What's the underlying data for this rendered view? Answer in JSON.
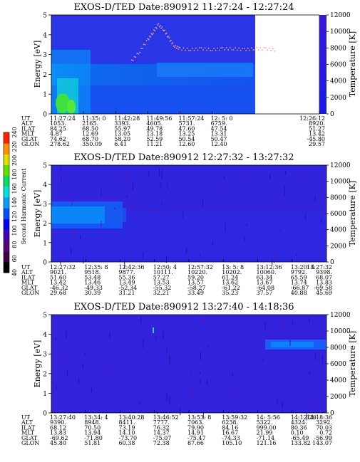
{
  "chart_data": [
    {
      "type": "heatmap",
      "title": "EXOS-D/TED   Date:890912   11:27:24 - 12:27:24",
      "ylabel": "Energy [eV]",
      "y2label": "Temperature [K]",
      "ylim": [
        0,
        5
      ],
      "yticks": [
        "0",
        "1",
        "2",
        "3",
        "4",
        "5"
      ],
      "y2lim": [
        0,
        12000
      ],
      "y2ticks": [
        "0",
        "2000",
        "4000",
        "6000",
        "8000",
        "10000",
        "12000"
      ],
      "data_end_fraction": 0.84,
      "ephemeris": {
        "row_labels": [
          "UT",
          "ALT",
          "ILAT",
          "MLT",
          "GLAT",
          "GLON"
        ],
        "columns": [
          {
            "x": 0.0,
            "values": [
              "11:27:24",
              "1053.",
              "84.25",
              "4.87",
              "74.62",
              "278.62"
            ]
          },
          {
            "x": 0.12,
            "values": [
              "11:35: 0",
              "2165.",
              "68.50",
              "12.69",
              "68.70",
              "350.09"
            ]
          },
          {
            "x": 0.24,
            "values": [
              "11:42:28",
              "3393.",
              "55.97",
              "13.05",
              "58.20",
              "6.41"
            ]
          },
          {
            "x": 0.36,
            "values": [
              "11:49:56",
              "4605.",
              "49.78",
              "13.18",
              "52.59",
              "11.21"
            ]
          },
          {
            "x": 0.48,
            "values": [
              "11:57:24",
              "5731.",
              "47.60",
              "13.25",
              "50.54",
              "12.60"
            ]
          },
          {
            "x": 0.6,
            "values": [
              "12: 5: 0",
              "6759.",
              "47.54",
              "13.31",
              "50.47",
              "12.40"
            ]
          },
          {
            "x": 1.0,
            "values": [
              "12:26:12",
              "8920.",
              "51.27",
              "13.42",
              "-45.80",
              "29.57"
            ]
          }
        ]
      },
      "series": [
        {
          "name": "Temperature",
          "kind": "dots",
          "x": [
            0.3,
            0.33,
            0.36,
            0.38,
            0.4,
            0.42,
            0.44,
            0.46,
            0.48,
            0.52,
            0.56,
            0.6,
            0.64,
            0.68,
            0.72,
            0.76,
            0.8,
            0.84
          ],
          "y": [
            6400,
            7600,
            9000,
            9900,
            10800,
            10200,
            9100,
            8200,
            7900,
            7800,
            7900,
            7800,
            7900,
            7900,
            7800,
            7900,
            7900,
            7700
          ]
        }
      ]
    },
    {
      "type": "heatmap",
      "title": "EXOS-D/TED   Date:890912   12:27:32 - 13:27:32",
      "ylabel": "Energy [eV]",
      "y2label": "Temperature [K]",
      "ylim": [
        0,
        5
      ],
      "yticks": [
        "0",
        "1",
        "2",
        "3",
        "4",
        "5"
      ],
      "y2lim": [
        0,
        12000
      ],
      "y2ticks": [
        "0",
        "2000",
        "4000",
        "6000",
        "8000",
        "10000",
        "12000"
      ],
      "data_end_fraction": 1.0,
      "ephemeris": {
        "row_labels": [
          "UT",
          "ALT",
          "ILAT",
          "MLT",
          "GLAT",
          "GLON"
        ],
        "columns": [
          {
            "x": 0.0,
            "values": [
              "12:27:32",
              "9021.",
              "51.60",
              "13.42",
              "-46.32",
              "29.68"
            ]
          },
          {
            "x": 0.125,
            "values": [
              "12:35: 8",
              "9518.",
              "53.48",
              "13.46",
              "-49.33",
              "30.39"
            ]
          },
          {
            "x": 0.25,
            "values": [
              "12:42:36",
              "9877.",
              "55.36",
              "13.49",
              "-52.34",
              "31.21"
            ]
          },
          {
            "x": 0.375,
            "values": [
              "12:50: 4",
              "10111.",
              "57.27",
              "13.53",
              "-55.32",
              "32.21"
            ]
          },
          {
            "x": 0.5,
            "values": [
              "12:57:32",
              "10220.",
              "59.20",
              "13.57",
              "-58.27",
              "33.49"
            ]
          },
          {
            "x": 0.625,
            "values": [
              "13: 5: 8",
              "10202.",
              "61.24",
              "13.62",
              "-61.22",
              "35.23"
            ]
          },
          {
            "x": 0.75,
            "values": [
              "13:12:36",
              "10060.",
              "63.34",
              "13.67",
              "-64.08",
              "37.57"
            ]
          },
          {
            "x": 0.875,
            "values": [
              "13:20: 4",
              "9792.",
              "65.59",
              "13.74",
              "-66.87",
              "40.88"
            ]
          },
          {
            "x": 1.0,
            "values": [
              "13:27:32",
              "9398.",
              "68.07",
              "13.83",
              "-69.58",
              "45.69"
            ]
          }
        ]
      },
      "series": []
    },
    {
      "type": "heatmap",
      "title": "EXOS-D/TED   Date:890912   13:27:40 - 14:18:36",
      "ylabel": "Energy [eV]",
      "y2label": "Temperature [K]",
      "ylim": [
        0,
        5
      ],
      "yticks": [
        "0",
        "1",
        "2",
        "3",
        "4",
        "5"
      ],
      "y2lim": [
        0,
        12000
      ],
      "y2ticks": [
        "0",
        "2000",
        "4000",
        "6000",
        "8000",
        "10000",
        "12000"
      ],
      "data_end_fraction": 1.0,
      "ephemeris": {
        "row_labels": [
          "UT",
          "ALT",
          "ILAT",
          "MLT",
          "GLAT",
          "GLON"
        ],
        "columns": [
          {
            "x": 0.0,
            "values": [
              "13:27:40",
              "9390.",
              "68.12",
              "13.83",
              "-69.62",
              "45.80"
            ]
          },
          {
            "x": 0.125,
            "values": [
              "13:34: 4",
              "8948.",
              "70.50",
              "13.94",
              "-71.80",
              "51.81"
            ]
          },
          {
            "x": 0.25,
            "values": [
              "13:40:28",
              "8411.",
              "73.19",
              "14.10",
              "-73.70",
              "60.38"
            ]
          },
          {
            "x": 0.375,
            "values": [
              "13:46:52",
              "7777.",
              "76.32",
              "14.37",
              "-75.07",
              "72.38"
            ]
          },
          {
            "x": 0.5,
            "values": [
              "13:53: 8",
              "7063.",
              "79.90",
              "14.91",
              "-75.47",
              "87.66"
            ]
          },
          {
            "x": 0.625,
            "values": [
              "13:59:32",
              "6238.",
              "84.16",
              "16.67",
              "-74.33",
              "105.10"
            ]
          },
          {
            "x": 0.75,
            "values": [
              "14: 5:56",
              "5322.",
              "999.00",
              "21.99",
              "-71.14",
              "121.16"
            ]
          },
          {
            "x": 0.875,
            "values": [
              "14:12:20",
              "4324.",
              "80.36",
              "0.10",
              "-65.49",
              "133.82"
            ]
          },
          {
            "x": 1.0,
            "values": [
              "14:18:36",
              "3292.",
              "70.03",
              "0.72",
              "-56.99",
              "143.07"
            ]
          }
        ]
      },
      "series": []
    }
  ],
  "colorbar": {
    "label": "Second Harmonic Current",
    "ticks": [
      "40",
      "60",
      "80",
      "100",
      "120",
      "140",
      "160",
      "180",
      "200",
      "220",
      "240"
    ],
    "colors": [
      "#000000",
      "#3a0040",
      "#5a0078",
      "#4000b8",
      "#0000f0",
      "#0050ff",
      "#00a0ff",
      "#00e0e0",
      "#00e060",
      "#60e000",
      "#e0e000",
      "#ff9000",
      "#ff2000"
    ]
  },
  "colors": {
    "background_map": "#2233ee",
    "low_energy_band": "#0a7cf0",
    "hot_spot": "#38e040",
    "temperature_dots": "#e8a090"
  }
}
